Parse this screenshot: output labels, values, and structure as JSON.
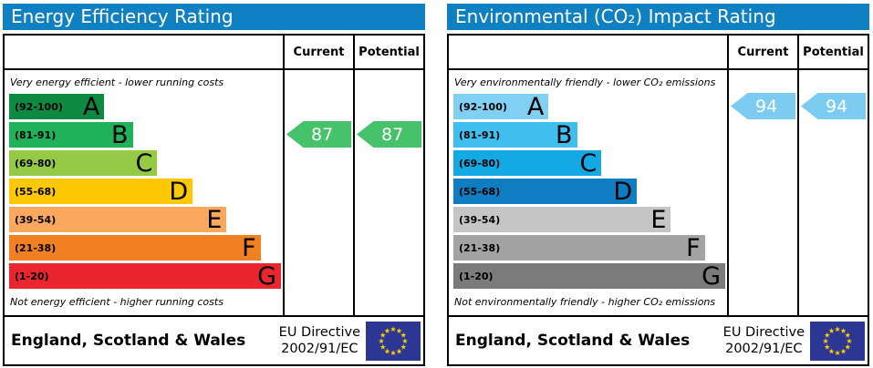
{
  "colors": {
    "header_bar": "#0f80c2",
    "eu_flag_blue": "#2b3792",
    "eu_star_yellow": "#ffcc00",
    "table_border": "#000000"
  },
  "chart_data": [
    {
      "type": "bar",
      "title": "Energy Efficiency Rating",
      "subtitle_top": "Very energy efficient - lower running costs",
      "subtitle_bottom": "Not energy efficient - higher running costs",
      "scale": [
        1,
        100
      ],
      "categories": [
        "A (92-100)",
        "B (81-91)",
        "C (69-80)",
        "D (55-68)",
        "E (39-54)",
        "F (21-38)",
        "G (1-20)"
      ],
      "series": [
        {
          "name": "Current",
          "values": [
            87
          ],
          "band": "B"
        },
        {
          "name": "Potential",
          "values": [
            87
          ],
          "band": "B"
        }
      ],
      "legend_position": "none",
      "grid": false
    },
    {
      "type": "bar",
      "title": "Environmental (CO₂) Impact Rating",
      "subtitle_top": "Very environmentally friendly - lower CO₂ emissions",
      "subtitle_bottom": "Not environmentally friendly - higher CO₂ emissions",
      "scale": [
        1,
        100
      ],
      "categories": [
        "A (92-100)",
        "B (81-91)",
        "C (69-80)",
        "D (55-68)",
        "E (39-54)",
        "F (21-38)",
        "G (1-20)"
      ],
      "series": [
        {
          "name": "Current",
          "values": [
            94
          ],
          "band": "A"
        },
        {
          "name": "Potential",
          "values": [
            94
          ],
          "band": "A"
        }
      ],
      "legend_position": "none",
      "grid": false
    }
  ],
  "panels": [
    {
      "title": "Energy Efficiency Rating",
      "columns": {
        "current": "Current",
        "potential": "Potential"
      },
      "top_note": "Very energy efficient - lower running costs",
      "bottom_note": "Not energy efficient - higher running costs",
      "bands": [
        {
          "range": "(92-100)",
          "letter": "A",
          "color": "#0d8a42",
          "width_pct": 35
        },
        {
          "range": "(81-91)",
          "letter": "B",
          "color": "#1fb25a",
          "width_pct": 45.5
        },
        {
          "range": "(69-80)",
          "letter": "C",
          "color": "#95ca44",
          "width_pct": 54.5
        },
        {
          "range": "(55-68)",
          "letter": "D",
          "color": "#fdc702",
          "width_pct": 67.5
        },
        {
          "range": "(39-54)",
          "letter": "E",
          "color": "#faa85e",
          "width_pct": 80
        },
        {
          "range": "(21-38)",
          "letter": "F",
          "color": "#f08022",
          "width_pct": 92.5
        },
        {
          "range": "(1-20)",
          "letter": "G",
          "color": "#e9262d",
          "width_pct": 100
        }
      ],
      "current": {
        "value": "87",
        "band_index": 1,
        "color": "#45c26a"
      },
      "potential": {
        "value": "87",
        "band_index": 1,
        "color": "#45c26a"
      },
      "footer": {
        "region": "England, Scotland & Wales",
        "directive_line1": "EU Directive",
        "directive_line2": "2002/91/EC"
      }
    },
    {
      "title": "Environmental (CO₂) Impact Rating",
      "columns": {
        "current": "Current",
        "potential": "Potential"
      },
      "top_note": "Very environmentally friendly - lower CO₂ emissions",
      "bottom_note": "Not environmentally friendly - higher CO₂ emissions",
      "bands": [
        {
          "range": "(92-100)",
          "letter": "A",
          "color": "#7fd0f2",
          "width_pct": 35
        },
        {
          "range": "(81-91)",
          "letter": "B",
          "color": "#3fbfef",
          "width_pct": 45.5
        },
        {
          "range": "(69-80)",
          "letter": "C",
          "color": "#12a9e4",
          "width_pct": 54.5
        },
        {
          "range": "(55-68)",
          "letter": "D",
          "color": "#0e7dc1",
          "width_pct": 67.5
        },
        {
          "range": "(39-54)",
          "letter": "E",
          "color": "#c5c5c5",
          "width_pct": 80
        },
        {
          "range": "(21-38)",
          "letter": "F",
          "color": "#a3a3a3",
          "width_pct": 92.5
        },
        {
          "range": "(1-20)",
          "letter": "G",
          "color": "#7b7b7b",
          "width_pct": 100
        }
      ],
      "current": {
        "value": "94",
        "band_index": 0,
        "color": "#7cccf2"
      },
      "potential": {
        "value": "94",
        "band_index": 0,
        "color": "#7cccf2"
      },
      "footer": {
        "region": "England, Scotland & Wales",
        "directive_line1": "EU Directive",
        "directive_line2": "2002/91/EC"
      }
    }
  ]
}
